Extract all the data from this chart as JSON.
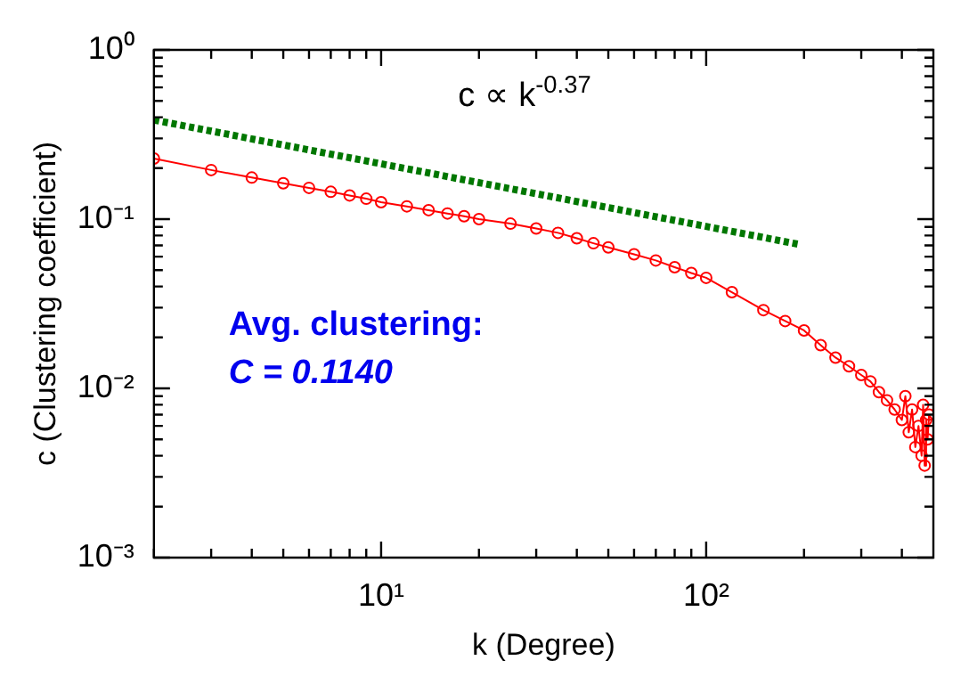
{
  "chart_data": {
    "type": "line",
    "xlabel": "k (Degree)",
    "ylabel": "c (Clustering coefficient)",
    "log": "xy",
    "grid": false,
    "legend": false,
    "xlim": [
      2,
      500
    ],
    "ylim": [
      0.001,
      1
    ],
    "xticks": [
      {
        "value": 2,
        "label": null
      },
      {
        "value": 3,
        "label": null
      },
      {
        "value": 4,
        "label": null
      },
      {
        "value": 5,
        "label": null
      },
      {
        "value": 6,
        "label": null
      },
      {
        "value": 7,
        "label": null
      },
      {
        "value": 8,
        "label": null
      },
      {
        "value": 9,
        "label": null
      },
      {
        "value": 10,
        "label": "10¹"
      },
      {
        "value": 20,
        "label": null
      },
      {
        "value": 30,
        "label": null
      },
      {
        "value": 40,
        "label": null
      },
      {
        "value": 50,
        "label": null
      },
      {
        "value": 60,
        "label": null
      },
      {
        "value": 70,
        "label": null
      },
      {
        "value": 80,
        "label": null
      },
      {
        "value": 90,
        "label": null
      },
      {
        "value": 100,
        "label": "10²"
      },
      {
        "value": 200,
        "label": null
      },
      {
        "value": 300,
        "label": null
      },
      {
        "value": 400,
        "label": null
      }
    ],
    "yticks": [
      {
        "value": 0.001,
        "label": "10⁻³"
      },
      {
        "value": 0.002,
        "label": null
      },
      {
        "value": 0.003,
        "label": null
      },
      {
        "value": 0.004,
        "label": null
      },
      {
        "value": 0.005,
        "label": null
      },
      {
        "value": 0.006,
        "label": null
      },
      {
        "value": 0.007,
        "label": null
      },
      {
        "value": 0.008,
        "label": null
      },
      {
        "value": 0.009,
        "label": null
      },
      {
        "value": 0.01,
        "label": "10⁻²"
      },
      {
        "value": 0.02,
        "label": null
      },
      {
        "value": 0.03,
        "label": null
      },
      {
        "value": 0.04,
        "label": null
      },
      {
        "value": 0.05,
        "label": null
      },
      {
        "value": 0.06,
        "label": null
      },
      {
        "value": 0.07,
        "label": null
      },
      {
        "value": 0.08,
        "label": null
      },
      {
        "value": 0.09,
        "label": null
      },
      {
        "value": 0.1,
        "label": "10⁻¹"
      },
      {
        "value": 0.2,
        "label": null
      },
      {
        "value": 0.3,
        "label": null
      },
      {
        "value": 0.4,
        "label": null
      },
      {
        "value": 0.5,
        "label": null
      },
      {
        "value": 0.6,
        "label": null
      },
      {
        "value": 0.7,
        "label": null
      },
      {
        "value": 0.8,
        "label": null
      },
      {
        "value": 0.9,
        "label": null
      },
      {
        "value": 1,
        "label": "10⁰"
      }
    ],
    "series": [
      {
        "type": "line",
        "color": "#ff0000",
        "marker": "circle",
        "line_style": "solid",
        "x": [
          2,
          3,
          4,
          5,
          6,
          7,
          8,
          9,
          10,
          12,
          14,
          16,
          18,
          20,
          25,
          30,
          35,
          40,
          45,
          50,
          60,
          70,
          80,
          90,
          100,
          120,
          150,
          175,
          200,
          225,
          250,
          275,
          300,
          320,
          340,
          360,
          380,
          400,
          410,
          420,
          430,
          440,
          450,
          460,
          465,
          470,
          475,
          480,
          485
        ],
        "values": [
          0.228,
          0.195,
          0.176,
          0.163,
          0.153,
          0.145,
          0.138,
          0.132,
          0.126,
          0.119,
          0.113,
          0.108,
          0.104,
          0.1,
          0.094,
          0.088,
          0.083,
          0.077,
          0.072,
          0.068,
          0.062,
          0.057,
          0.052,
          0.048,
          0.045,
          0.037,
          0.029,
          0.025,
          0.022,
          0.018,
          0.0152,
          0.0135,
          0.012,
          0.011,
          0.0095,
          0.0085,
          0.0075,
          0.0065,
          0.009,
          0.0055,
          0.0075,
          0.0045,
          0.006,
          0.004,
          0.008,
          0.0035,
          0.0065,
          0.005,
          0.007
        ]
      },
      {
        "type": "line",
        "color": "#007700",
        "marker": "none",
        "line_style": "dotted",
        "x": [
          2,
          195
        ],
        "values": [
          0.385,
          0.0707
        ]
      }
    ],
    "annotations": [
      "c ∝ k$^{-0.37}$",
      "Avg. clustering:",
      "C = 0.1140"
    ]
  }
}
